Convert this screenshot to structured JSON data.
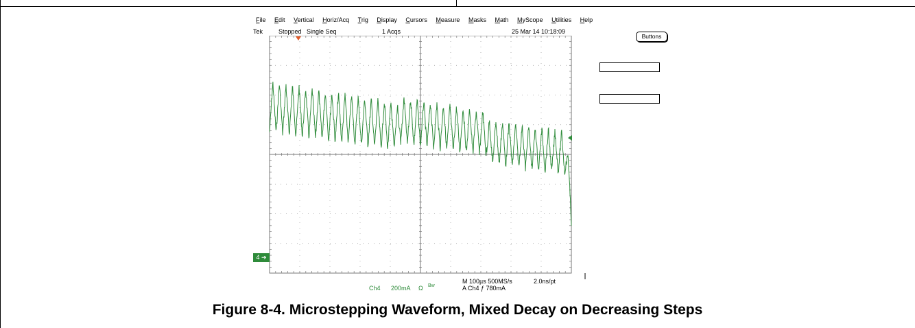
{
  "menu": [
    "File",
    "Edit",
    "Vertical",
    "Horiz/Acq",
    "Trig",
    "Display",
    "Cursors",
    "Measure",
    "Masks",
    "Math",
    "MyScope",
    "Utilities",
    "Help"
  ],
  "status": {
    "brand": "Tek",
    "state": "Stopped",
    "mode": "Single Seq",
    "acqs": "1 Acqs",
    "datetime": "25 Mar 14 10:18:09"
  },
  "buttons_label": "Buttons",
  "channel_marker": "4",
  "bottom": {
    "channel": "Ch4",
    "scale": "200mA",
    "coupling": "Ω",
    "bw": "Bw",
    "timebase": "M 100µs 500MS/s",
    "pt": "2.0ns/pt",
    "trigger": "A  Ch4  ƒ  780mA"
  },
  "caption": "Figure 8-4. Microstepping Waveform, Mixed Decay on Decreasing Steps",
  "colors": {
    "trace": "#2e8b3a",
    "trigger_marker": "#e05a2a",
    "grid": "#999999"
  },
  "icons": {
    "trigger_position": "trigger-down-triangle-icon",
    "trigger_level": "trigger-left-arrow-icon"
  },
  "chart_data": {
    "type": "line",
    "grid": true,
    "divisions": {
      "x": 10,
      "y": 8
    },
    "series": [
      {
        "values": []
      }
    ]
  }
}
